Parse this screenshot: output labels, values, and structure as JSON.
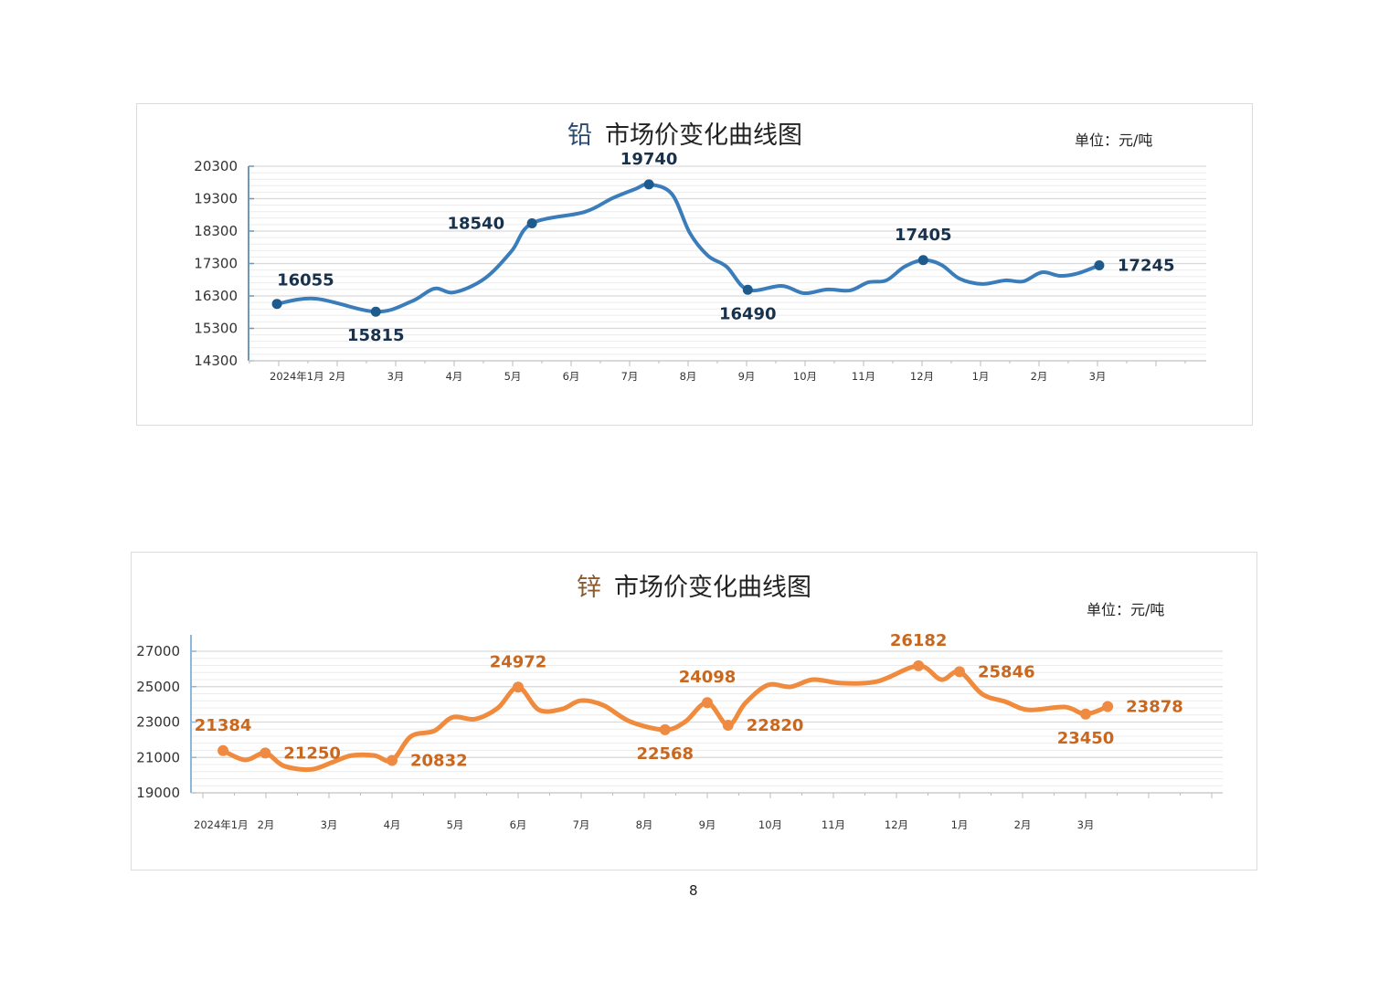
{
  "page_number": "8",
  "chart_data": [
    {
      "type": "line",
      "metal": "铅",
      "title_suffix": "市场价变化曲线图",
      "unit": "单位：元/吨",
      "color": "#3b7dbb",
      "marker_color": "#1d5a8e",
      "label_color": "#18324d",
      "axis_color": "#6f98b6",
      "ylim": [
        14300,
        20300
      ],
      "yticks": [
        20300,
        19300,
        18300,
        17300,
        16300,
        15300,
        14300
      ],
      "xticks": [
        "2024年1月",
        "2月",
        "3月",
        "4月",
        "5月",
        "6月",
        "7月",
        "8月",
        "9月",
        "10月",
        "11月",
        "12月",
        "1月",
        "2月",
        "3月"
      ],
      "grid": true,
      "x": [
        -0.03,
        0.63,
        1.66,
        2.27,
        2.66,
        3.0,
        3.52,
        3.98,
        4.33,
        5.23,
        5.7,
        6.1,
        6.33,
        6.72,
        7.03,
        7.34,
        7.66,
        8.02,
        8.6,
        8.98,
        9.38,
        9.77,
        10.08,
        10.39,
        10.7,
        11.02,
        11.33,
        11.64,
        12.03,
        12.42,
        12.73,
        13.05,
        13.36,
        13.67,
        14.03
      ],
      "values": [
        16055,
        16215,
        15815,
        16130,
        16525,
        16410,
        16835,
        17680,
        18540,
        18890,
        19310,
        19600,
        19740,
        19450,
        18240,
        17540,
        17200,
        16490,
        16610,
        16385,
        16500,
        16470,
        16720,
        16780,
        17200,
        17405,
        17260,
        16835,
        16670,
        16780,
        16750,
        17030,
        16920,
        17000,
        17245
      ],
      "annotations": [
        {
          "index": 0,
          "label": "16055",
          "placement": "above-right"
        },
        {
          "index": 2,
          "label": "15815",
          "placement": "below"
        },
        {
          "index": 8,
          "label": "18540",
          "placement": "left"
        },
        {
          "index": 12,
          "label": "19740",
          "placement": "above"
        },
        {
          "index": 17,
          "label": "16490",
          "placement": "below"
        },
        {
          "index": 25,
          "label": "17405",
          "placement": "above"
        },
        {
          "index": 34,
          "label": "17245",
          "placement": "right"
        }
      ]
    },
    {
      "type": "line",
      "metal": "锌",
      "title_suffix": "市场价变化曲线图",
      "unit": "单位：元/吨",
      "color": "#f08a3c",
      "marker_color": "#ee8a42",
      "label_color": "#c9671f",
      "axis_color": "#8db8dc",
      "ylim": [
        19000,
        27000
      ],
      "yticks": [
        27000,
        25000,
        23000,
        21000,
        19000
      ],
      "xticks": [
        "2024年1月",
        "2月",
        "3月",
        "4月",
        "5月",
        "6月",
        "7月",
        "8月",
        "9月",
        "10月",
        "11月",
        "12月",
        "1月",
        "2月",
        "3月"
      ],
      "grid": true,
      "x": [
        0.32,
        0.67,
        0.99,
        1.28,
        1.71,
        2.07,
        2.36,
        2.72,
        3.0,
        3.3,
        3.67,
        3.96,
        4.32,
        4.68,
        5.0,
        5.33,
        5.7,
        5.99,
        6.35,
        6.78,
        7.33,
        7.65,
        8.0,
        8.33,
        8.6,
        8.96,
        9.32,
        9.68,
        10.12,
        10.7,
        11.35,
        11.71,
        12.0,
        12.36,
        12.72,
        13.09,
        13.67,
        14.0,
        14.35
      ],
      "values": [
        21384,
        20860,
        21250,
        20530,
        20320,
        20750,
        21110,
        21110,
        20832,
        22190,
        22500,
        23270,
        23170,
        23800,
        24972,
        23690,
        23740,
        24210,
        23950,
        23020,
        22568,
        23020,
        24098,
        22820,
        24060,
        25090,
        24990,
        25400,
        25200,
        25300,
        26182,
        25400,
        25846,
        24580,
        24160,
        23690,
        23850,
        23450,
        23878
      ],
      "annotations": [
        {
          "index": 0,
          "label": "21384",
          "placement": "above"
        },
        {
          "index": 2,
          "label": "21250",
          "placement": "right"
        },
        {
          "index": 8,
          "label": "20832",
          "placement": "right"
        },
        {
          "index": 14,
          "label": "24972",
          "placement": "above"
        },
        {
          "index": 20,
          "label": "22568",
          "placement": "below"
        },
        {
          "index": 22,
          "label": "24098",
          "placement": "above"
        },
        {
          "index": 23,
          "label": "22820",
          "placement": "right"
        },
        {
          "index": 30,
          "label": "26182",
          "placement": "above"
        },
        {
          "index": 32,
          "label": "25846",
          "placement": "right"
        },
        {
          "index": 37,
          "label": "23450",
          "placement": "below"
        },
        {
          "index": 38,
          "label": "23878",
          "placement": "right"
        }
      ]
    }
  ]
}
